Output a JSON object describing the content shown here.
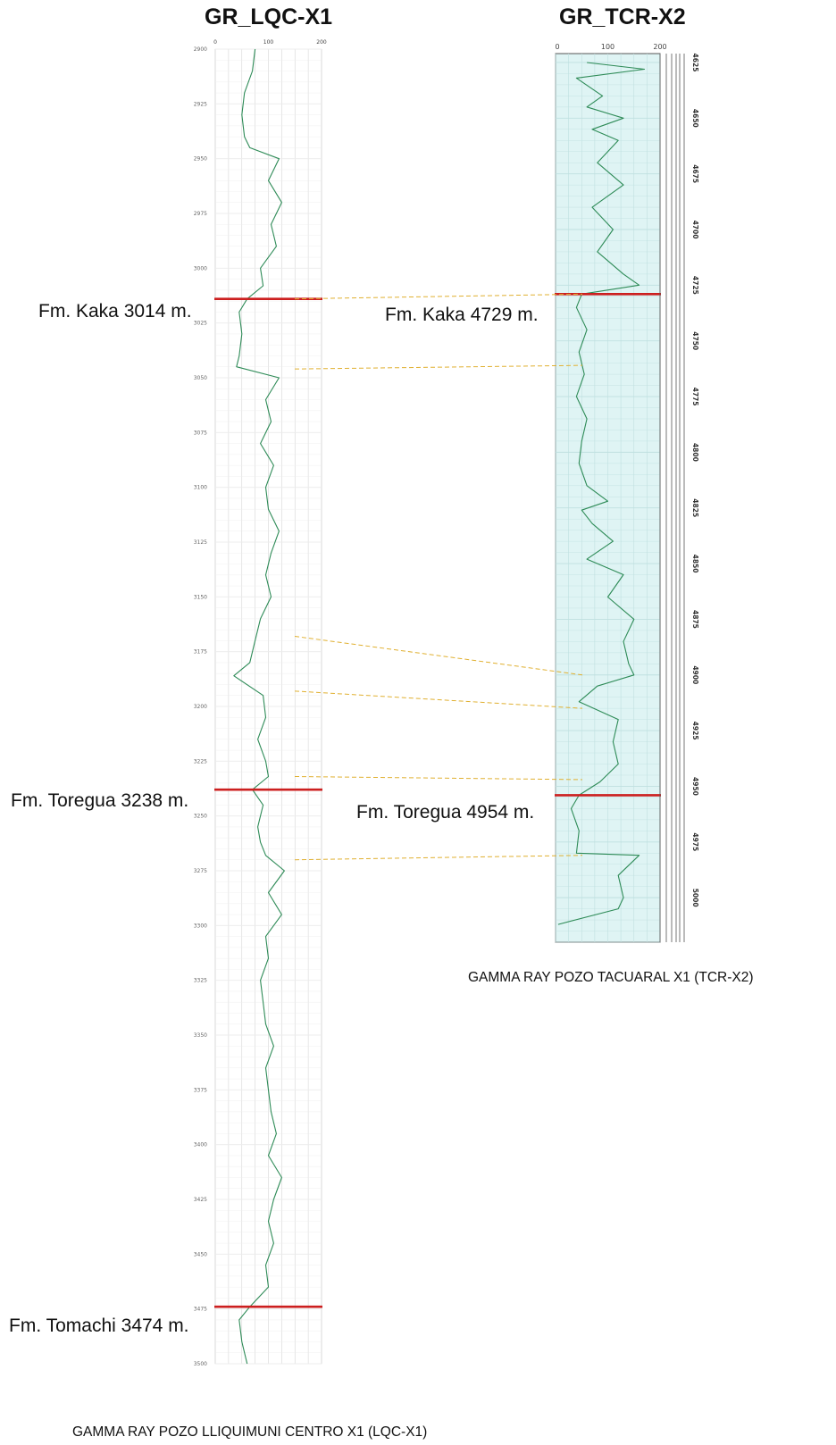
{
  "chart_data": [
    {
      "type": "line",
      "title": "GR_LQC-X1",
      "caption": "GAMMA RAY POZO LLIQUIMUNI CENTRO X1 (LQC-X1)",
      "x_ticks": [
        "0",
        "100",
        "200"
      ],
      "xlim": [
        0,
        200
      ],
      "ylim": [
        2900,
        3500
      ],
      "depth_ticks": [
        "2900",
        "2925",
        "2950",
        "2975",
        "3000",
        "3025",
        "3050",
        "3075",
        "3100",
        "3125",
        "3150",
        "3175",
        "3200",
        "3225",
        "3250",
        "3275",
        "3300",
        "3325",
        "3350",
        "3375",
        "3400",
        "3425",
        "3450",
        "3475",
        "3500"
      ],
      "grid": true,
      "series": [
        {
          "color": "#2e8b57",
          "depth": [
            2900,
            2910,
            2920,
            2930,
            2940,
            2945,
            2950,
            2960,
            2970,
            2980,
            2990,
            3000,
            3008,
            3014,
            3020,
            3030,
            3040,
            3045,
            3050,
            3060,
            3070,
            3080,
            3090,
            3100,
            3110,
            3120,
            3130,
            3140,
            3150,
            3160,
            3170,
            3180,
            3186,
            3195,
            3205,
            3215,
            3225,
            3232,
            3238,
            3245,
            3255,
            3262,
            3268,
            3275,
            3285,
            3295,
            3305,
            3315,
            3325,
            3335,
            3345,
            3355,
            3365,
            3375,
            3385,
            3395,
            3405,
            3415,
            3425,
            3435,
            3445,
            3455,
            3465,
            3474,
            3480,
            3490,
            3500
          ],
          "gr": [
            75,
            70,
            55,
            50,
            55,
            65,
            120,
            100,
            125,
            105,
            115,
            85,
            90,
            60,
            45,
            50,
            45,
            40,
            120,
            95,
            105,
            85,
            110,
            95,
            100,
            120,
            105,
            95,
            105,
            85,
            75,
            65,
            35,
            90,
            95,
            80,
            95,
            100,
            70,
            90,
            80,
            85,
            95,
            130,
            100,
            125,
            95,
            100,
            85,
            90,
            95,
            110,
            95,
            100,
            105,
            115,
            100,
            125,
            110,
            100,
            110,
            95,
            100,
            65,
            45,
            50,
            60
          ]
        }
      ],
      "formation_tops": [
        {
          "label": "Fm. Kaka 3014 m.",
          "depth": 3014
        },
        {
          "label": "Fm. Toregua 3238 m.",
          "depth": 3238
        },
        {
          "label": "Fm. Tomachi 3474 m.",
          "depth": 3474
        }
      ]
    },
    {
      "type": "line",
      "title": "GR_TCR-X2",
      "caption": "GAMMA RAY POZO TACUARAL X1 (TCR-X2)",
      "x_ticks": [
        "0",
        "100",
        "200"
      ],
      "xlim": [
        0,
        200
      ],
      "ylim": [
        4621,
        5020
      ],
      "depth_ticks": [
        "4625",
        "4650",
        "4675",
        "4700",
        "4725",
        "4750",
        "4775",
        "4800",
        "4825",
        "4850",
        "4875",
        "4900",
        "4925",
        "4950",
        "4975",
        "5000"
      ],
      "grid": true,
      "series": [
        {
          "color": "#2e8b57",
          "depth": [
            4625,
            4628,
            4632,
            4640,
            4645,
            4650,
            4655,
            4660,
            4670,
            4680,
            4690,
            4700,
            4710,
            4720,
            4725,
            4729,
            4735,
            4745,
            4755,
            4765,
            4775,
            4785,
            4795,
            4805,
            4815,
            4822,
            4826,
            4832,
            4840,
            4848,
            4855,
            4865,
            4875,
            4885,
            4895,
            4900,
            4905,
            4912,
            4920,
            4930,
            4940,
            4948,
            4954,
            4960,
            4970,
            4980,
            4981,
            4990,
            5000,
            5005,
            5012
          ],
          "gr": [
            60,
            170,
            40,
            90,
            60,
            130,
            70,
            120,
            80,
            130,
            70,
            110,
            80,
            130,
            160,
            50,
            40,
            60,
            45,
            55,
            40,
            60,
            50,
            45,
            60,
            100,
            50,
            70,
            110,
            60,
            130,
            100,
            150,
            130,
            140,
            150,
            80,
            45,
            120,
            110,
            120,
            85,
            45,
            30,
            45,
            40,
            160,
            120,
            130,
            120,
            5
          ]
        }
      ],
      "formation_tops": [
        {
          "label": "Fm. Kaka 4729 m.",
          "depth": 4729
        },
        {
          "label": "Fm. Toregua 4954 m.",
          "depth": 4954
        }
      ]
    }
  ],
  "correlation_lines": [
    {
      "left_depth": 3014,
      "right_depth": 4729
    },
    {
      "left_depth": 3046,
      "right_depth": 4761
    },
    {
      "left_depth": 3168,
      "right_depth": 4900
    },
    {
      "left_depth": 3193,
      "right_depth": 4915
    },
    {
      "left_depth": 3232,
      "right_depth": 4947
    },
    {
      "left_depth": 3270,
      "right_depth": 4981
    }
  ],
  "colors": {
    "curve": "#2e8b57",
    "formation_top": "#cc1f1f",
    "correlation": "#e0b030",
    "right_track_bg": "#dff4f4",
    "grid": "#d6d6d6"
  }
}
